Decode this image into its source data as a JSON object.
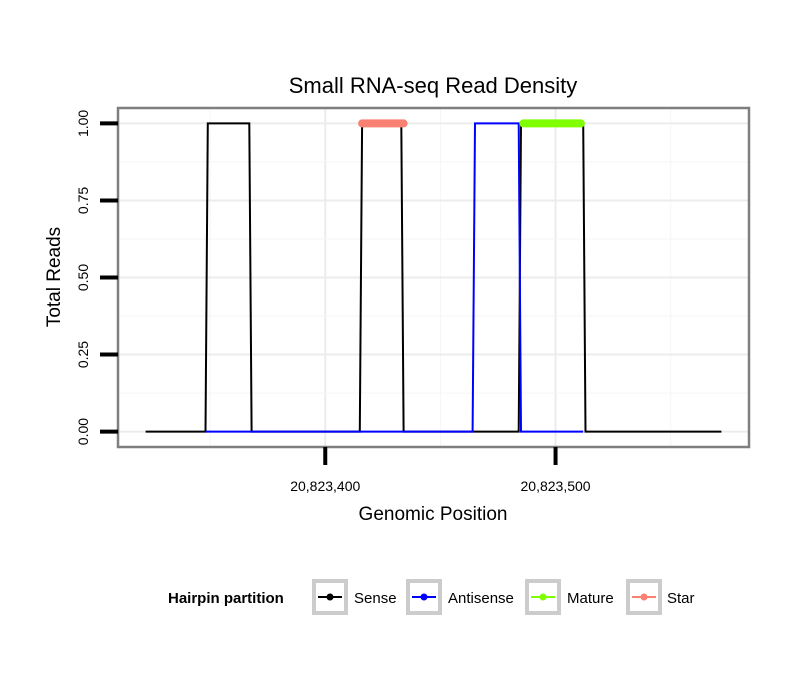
{
  "chart_data": {
    "type": "line",
    "title": "Small RNA-seq Read Density",
    "xlabel": "Genomic Position",
    "ylabel": "Total Reads",
    "xlim": [
      20823310,
      20823584
    ],
    "ylim": [
      -0.05,
      1.05
    ],
    "x_ticks": [
      {
        "value": 20823400,
        "label": "20,823,400"
      },
      {
        "value": 20823500,
        "label": "20,823,500"
      }
    ],
    "y_ticks": [
      {
        "value": 0.0,
        "label": "0.00"
      },
      {
        "value": 0.25,
        "label": "0.25"
      },
      {
        "value": 0.5,
        "label": "0.50"
      },
      {
        "value": 0.75,
        "label": "0.75"
      },
      {
        "value": 1.0,
        "label": "1.00"
      }
    ],
    "grid": true,
    "legend": {
      "title": "Hairpin partition",
      "position": "bottom",
      "entries": [
        {
          "label": "Sense",
          "color": "#000000"
        },
        {
          "label": "Antisense",
          "color": "#0000ff"
        },
        {
          "label": "Mature",
          "color": "#7fff00"
        },
        {
          "label": "Star",
          "color": "#fa8072"
        }
      ]
    },
    "series": [
      {
        "name": "Sense",
        "color": "#000000",
        "kind": "line",
        "x": [
          20823322,
          20823348,
          20823349,
          20823367,
          20823368,
          20823415,
          20823416,
          20823433,
          20823434,
          20823484,
          20823485,
          20823512,
          20823513,
          20823572
        ],
        "y": [
          0,
          0,
          1,
          1,
          0,
          0,
          1,
          1,
          0,
          0,
          1,
          1,
          0,
          0
        ]
      },
      {
        "name": "Antisense",
        "color": "#0000ff",
        "kind": "line",
        "x": [
          20823348,
          20823368,
          20823416,
          20823434,
          20823464,
          20823465,
          20823484,
          20823485,
          20823512
        ],
        "y": [
          0,
          0,
          0,
          0,
          0,
          1,
          1,
          0,
          0
        ]
      },
      {
        "name": "Mature",
        "color": "#7fff00",
        "kind": "segment",
        "x": [
          20823486,
          20823511
        ],
        "y": [
          1,
          1
        ]
      },
      {
        "name": "Star",
        "color": "#fa8072",
        "kind": "segment",
        "x": [
          20823416,
          20823434
        ],
        "y": [
          1,
          1
        ]
      }
    ]
  }
}
